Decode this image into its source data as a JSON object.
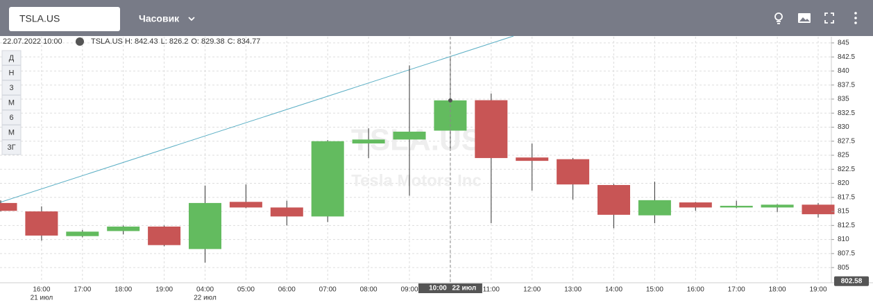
{
  "toolbar": {
    "ticker": "TSLA.US",
    "interval": "Часовик"
  },
  "periods": [
    "Д",
    "Н",
    "3",
    "М",
    "6",
    "М",
    "3Г"
  ],
  "chart_data": {
    "type": "candlestick",
    "header": {
      "datetime": "22.07.2022 10:00",
      "symbol": "TSLA.US",
      "labels": [
        "H:",
        "L:",
        "O:",
        "C:"
      ]
    },
    "watermark": {
      "title": "TSLA.US",
      "subtitle": "Tesla Motors Inc"
    },
    "categories": [
      null,
      "16:00",
      "17:00",
      "18:00",
      "19:00",
      "04:00",
      "05:00",
      "06:00",
      "07:00",
      "08:00",
      "09:00",
      "10:00",
      "11:00",
      "12:00",
      "13:00",
      "14:00",
      "15:00",
      "16:00",
      "17:00",
      "18:00",
      "19:00"
    ],
    "date_labels": [
      null,
      "21 июл",
      null,
      null,
      null,
      "22 июл",
      null,
      null,
      null,
      null,
      null,
      null,
      null,
      null,
      null,
      null,
      null,
      null,
      null,
      null,
      null
    ],
    "open": [
      816.5,
      815,
      810.6,
      811.5,
      812.3,
      808.3,
      816.7,
      815.7,
      814.1,
      827.1,
      827.8,
      829.38,
      834.8,
      824.6,
      824.3,
      819.7,
      814.3,
      816.6,
      815.7,
      815.7,
      816.2
    ],
    "high": [
      817,
      815.9,
      811.7,
      812.5,
      812.5,
      819.6,
      819.8,
      816.9,
      827.7,
      829.8,
      841,
      842.43,
      836,
      827.1,
      824.5,
      819.9,
      820.3,
      816.7,
      816.9,
      816.3,
      816.5
    ],
    "low": [
      815,
      809.8,
      810.4,
      810.9,
      808.8,
      805.9,
      815.6,
      812.5,
      813.1,
      824.5,
      817.8,
      826.2,
      812.9,
      818.7,
      817.1,
      812,
      812.9,
      815.1,
      815.6,
      814.9,
      813.9
    ],
    "close": [
      815.1,
      810.7,
      811.4,
      812.3,
      809,
      816.5,
      815.7,
      814.1,
      827.5,
      827.8,
      829.2,
      834.77,
      824.5,
      824,
      819.8,
      814.4,
      817,
      815.7,
      816,
      816.2,
      814.5
    ],
    "up_color": "#63bb5f",
    "down_color": "#c85555",
    "ylim": [
      802.3,
      846.1
    ],
    "yticks": [
      805,
      807.5,
      810,
      812.5,
      815,
      817.5,
      820,
      822.5,
      825,
      827.5,
      830,
      832.5,
      835,
      837.5,
      840,
      842.5,
      845
    ],
    "grid": true,
    "crosshair": {
      "time": "10:00",
      "date": "22 июл"
    },
    "last_price": 802.58
  }
}
